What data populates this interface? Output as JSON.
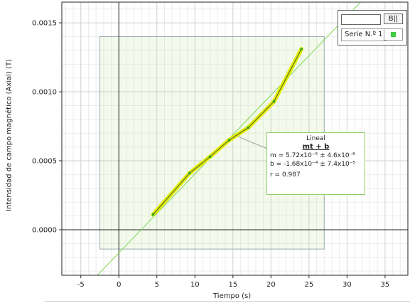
{
  "chart_data": {
    "type": "scatter",
    "title": "",
    "xlabel": "Tiempo (s)",
    "ylabel": "Intensidad de campo magnético (Axial) (T)",
    "xlim": [
      -7.5,
      38
    ],
    "ylim": [
      -0.00033,
      0.00165
    ],
    "xticks": [
      -5,
      0,
      5,
      10,
      15,
      20,
      25,
      30,
      35
    ],
    "yticks": [
      0.0,
      0.0005,
      0.001,
      0.0015
    ],
    "ytick_labels": [
      "0.0000",
      "0.0005",
      "0.0010",
      "0.0015"
    ],
    "grid": true,
    "series": [
      {
        "name": "Serie N.º 1",
        "color": "#e4ef10",
        "marker_color": "#2aa52a",
        "x": [
          4.5,
          9.3,
          12.0,
          14.5,
          17.0,
          20.4,
          24.0
        ],
        "y": [
          0.00011,
          0.00041,
          0.00053,
          0.00065,
          0.00074,
          0.00093,
          0.00131
        ]
      }
    ],
    "fit": {
      "name": "Lineal",
      "formula": "mt + b",
      "m_text": "m = 5.72x10⁻⁵ ± 4.6x10⁻⁶",
      "b_text": "b  = -1.68x10⁻⁴ ± 7.4x10⁻⁵",
      "r_text": "r = 0.987",
      "slope": 5.72e-05,
      "intercept": -0.000168,
      "color": "#7ed957"
    },
    "selection_range": {
      "x": [
        -2.5,
        27.0
      ],
      "y": [
        -0.00014,
        0.0014
      ]
    }
  },
  "legend": {
    "button_label": "B||",
    "series_label": "Serie N.º 1",
    "swatch_color": "#3ecb3e"
  }
}
